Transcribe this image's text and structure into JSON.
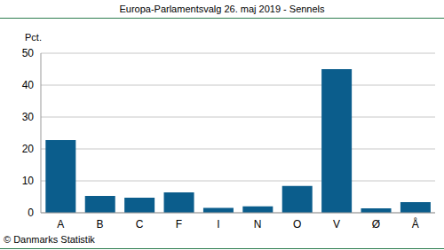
{
  "chart_data": {
    "type": "bar",
    "title": "Europa-Parlamentsvalg 26. maj 2019 - Sennels",
    "ylabel": "Pct.",
    "source": "© Danmarks Statistik",
    "categories": [
      "A",
      "B",
      "C",
      "F",
      "I",
      "N",
      "O",
      "V",
      "Ø",
      "Å"
    ],
    "values": [
      22.8,
      5.3,
      4.7,
      6.4,
      1.5,
      2.0,
      8.4,
      45.0,
      1.4,
      3.3
    ],
    "color": "#0b5d8c",
    "ylim": [
      0,
      50
    ],
    "yticks": [
      0,
      10,
      20,
      30,
      40,
      50
    ],
    "grid": true
  }
}
